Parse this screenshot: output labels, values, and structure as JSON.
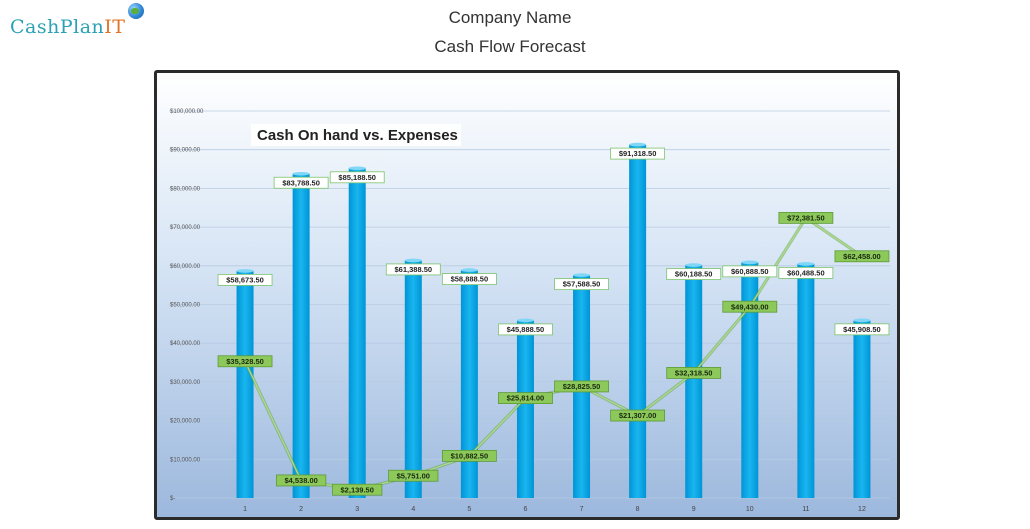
{
  "logo": {
    "text_a": "CashPlan",
    "text_b": "IT",
    "icon": "globe-icon"
  },
  "header": {
    "title": "Company Name",
    "subtitle": "Cash Flow Forecast"
  },
  "colors": {
    "bar": "#00a8e8",
    "line": "#79b94b",
    "line_label_bg": "#8cc85a",
    "frame": "#2b2b2b"
  },
  "chart_data": {
    "type": "bar",
    "title": "Cash On hand vs. Expenses",
    "categories": [
      "1",
      "2",
      "3",
      "4",
      "5",
      "6",
      "7",
      "8",
      "9",
      "10",
      "11",
      "12"
    ],
    "ylim": [
      0,
      100000
    ],
    "yticks": [
      0,
      10000,
      20000,
      30000,
      40000,
      50000,
      60000,
      70000,
      80000,
      90000,
      100000
    ],
    "ytick_labels": [
      "$-",
      "$10,000.00",
      "$20,000.00",
      "$30,000.00",
      "$40,000.00",
      "$50,000.00",
      "$60,000.00",
      "$70,000.00",
      "$80,000.00",
      "$90,000.00",
      "$100,000.00"
    ],
    "grid": true,
    "bars": {
      "values": [
        58673.5,
        83788.5,
        85188.5,
        61388.5,
        58888.5,
        45888.5,
        57588.5,
        91318.5,
        60188.5,
        60888.5,
        60488.5,
        45908.5
      ],
      "labels": [
        "$58,673.50",
        "$83,788.50",
        "$85,188.50",
        "$61,388.50",
        "$58,888.50",
        "$45,888.50",
        "$57,588.50",
        "$91,318.50",
        "$60,188.50",
        "$60,888.50",
        "$60,488.50",
        "$45,908.50"
      ]
    },
    "line": {
      "values": [
        35328.5,
        4538.0,
        2139.5,
        5751.0,
        10882.5,
        25814.0,
        28825.5,
        21307.0,
        32318.5,
        49430.0,
        72381.5,
        62458.0
      ],
      "labels": [
        "$35,328.50",
        "$4,538.00",
        "$2,139.50",
        "$5,751.00",
        "$10,882.50",
        "$25,814.00",
        "$28,825.50",
        "$21,307.00",
        "$32,318.50",
        "$49,430.00",
        "$72,381.50",
        "$62,458.00"
      ]
    }
  }
}
